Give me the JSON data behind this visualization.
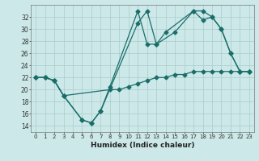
{
  "title": "",
  "xlabel": "Humidex (Indice chaleur)",
  "bg_color": "#cce8e8",
  "grid_color": "#aacccc",
  "line_color": "#1a6e6a",
  "xlim": [
    -0.5,
    23.5
  ],
  "ylim": [
    13,
    34
  ],
  "yticks": [
    14,
    16,
    18,
    20,
    22,
    24,
    26,
    28,
    30,
    32
  ],
  "xticks": [
    0,
    1,
    2,
    3,
    4,
    5,
    6,
    7,
    8,
    9,
    10,
    11,
    12,
    13,
    14,
    15,
    16,
    17,
    18,
    19,
    20,
    21,
    22,
    23
  ],
  "line1_x": [
    0,
    1,
    2,
    3,
    5,
    6,
    7,
    8,
    11,
    12,
    13,
    14,
    17,
    18,
    19,
    20,
    21,
    22,
    23
  ],
  "line1_y": [
    22,
    22,
    21.5,
    19,
    15,
    14.5,
    16.5,
    20.5,
    33,
    27.5,
    27.5,
    29.5,
    33,
    33,
    32,
    30,
    26,
    23,
    23
  ],
  "line2_x": [
    0,
    1,
    2,
    3,
    5,
    6,
    7,
    11,
    12,
    13,
    15,
    17,
    18,
    19,
    20,
    21,
    22,
    23
  ],
  "line2_y": [
    22,
    22,
    21.5,
    19,
    15,
    14.5,
    16.5,
    31,
    33,
    27.5,
    29.5,
    33,
    31.5,
    32,
    30,
    26,
    23,
    23
  ],
  "line3_x": [
    0,
    1,
    2,
    3,
    8,
    9,
    10,
    11,
    12,
    13,
    14,
    15,
    16,
    17,
    18,
    19,
    20,
    21,
    22,
    23
  ],
  "line3_y": [
    22,
    22,
    21.5,
    19,
    20,
    20,
    20.5,
    21,
    21.5,
    22,
    22,
    22.5,
    22.5,
    23,
    23,
    23,
    23,
    23,
    23,
    23
  ]
}
